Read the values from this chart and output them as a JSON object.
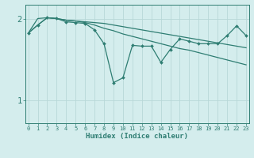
{
  "xlabel": "Humidex (Indice chaleur)",
  "x": [
    0,
    1,
    2,
    3,
    4,
    5,
    6,
    7,
    8,
    9,
    10,
    11,
    12,
    13,
    14,
    15,
    16,
    17,
    18,
    19,
    20,
    21,
    22,
    23
  ],
  "line1_jagged": [
    1.83,
    1.93,
    2.02,
    2.01,
    1.97,
    1.96,
    1.95,
    1.87,
    1.7,
    1.22,
    1.28,
    1.68,
    1.67,
    1.67,
    1.47,
    1.63,
    1.76,
    1.73,
    1.7,
    1.7,
    1.7,
    1.8,
    1.92,
    1.8
  ],
  "line2_upper": [
    1.83,
    2.01,
    2.02,
    2.01,
    1.99,
    1.98,
    1.97,
    1.96,
    1.95,
    1.93,
    1.91,
    1.89,
    1.87,
    1.85,
    1.83,
    1.81,
    1.79,
    1.77,
    1.75,
    1.73,
    1.71,
    1.69,
    1.67,
    1.65
  ],
  "line3_lower": [
    1.83,
    1.93,
    2.02,
    2.01,
    1.99,
    1.98,
    1.96,
    1.93,
    1.89,
    1.86,
    1.82,
    1.79,
    1.76,
    1.73,
    1.7,
    1.67,
    1.64,
    1.62,
    1.59,
    1.56,
    1.53,
    1.5,
    1.47,
    1.44
  ],
  "color": "#2e7d72",
  "bg_color": "#d4eded",
  "grid_color": "#b8d8d8",
  "ylim": [
    0.72,
    2.18
  ],
  "yticks": [
    1,
    2
  ],
  "xlim": [
    -0.3,
    23.3
  ]
}
